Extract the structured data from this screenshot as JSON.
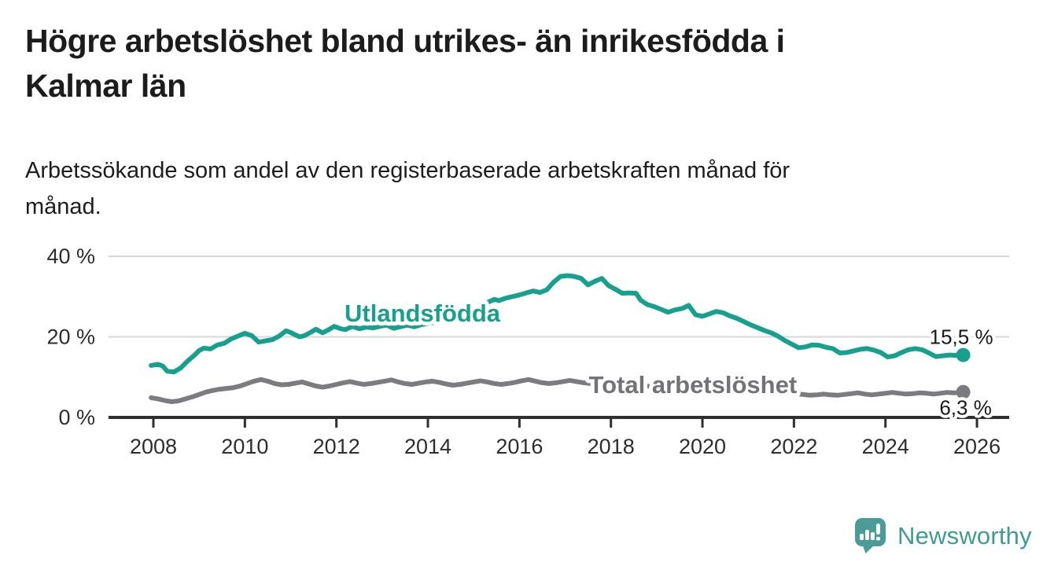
{
  "page": {
    "title_line1": "Högre arbetslöshet bland utrikes- än inrikesfödda i",
    "title_line2": "Kalmar län",
    "subtitle_line1": "Arbetssökande som andel av den registerbaserade arbetskraften månad för",
    "subtitle_line2": "månad."
  },
  "branding": {
    "logo_text": "Newsworthy",
    "logo_text_color": "#419a94",
    "icon_color": "#4a9c97"
  },
  "chart_data": {
    "type": "line",
    "grid": "horizontal-only",
    "background": "#ffffff",
    "x_axis": {
      "range": [
        2007.6,
        2026.8
      ],
      "ticks": [
        {
          "value": 2008,
          "label": "2008"
        },
        {
          "value": 2010,
          "label": "2010"
        },
        {
          "value": 2012,
          "label": "2012"
        },
        {
          "value": 2014,
          "label": "2014"
        },
        {
          "value": 2016,
          "label": "2016"
        },
        {
          "value": 2018,
          "label": "2018"
        },
        {
          "value": 2020,
          "label": "2020"
        },
        {
          "value": 2022,
          "label": "2022"
        },
        {
          "value": 2024,
          "label": "2024"
        },
        {
          "value": 2026,
          "label": "2026"
        }
      ]
    },
    "y_axis": {
      "range": [
        0,
        40
      ],
      "unit": "%",
      "ticks": [
        {
          "value": 0,
          "label": "0 %"
        },
        {
          "value": 20,
          "label": "20 %"
        },
        {
          "value": 40,
          "label": "40 %"
        }
      ]
    },
    "series": [
      {
        "name": "Utlandsfödda",
        "label": "Utlandsfödda",
        "color": "#18a08f",
        "end_label": "15,5 %",
        "end_value": 15.5,
        "label_anchor": {
          "year": 2013.88,
          "value": 26.0
        },
        "points": [
          [
            2007.95,
            12.9
          ],
          [
            2008.1,
            13.2
          ],
          [
            2008.2,
            12.8
          ],
          [
            2008.3,
            11.5
          ],
          [
            2008.45,
            11.3
          ],
          [
            2008.6,
            12.3
          ],
          [
            2008.75,
            14.0
          ],
          [
            2008.9,
            15.5
          ],
          [
            2009.0,
            16.6
          ],
          [
            2009.1,
            17.2
          ],
          [
            2009.25,
            17.0
          ],
          [
            2009.4,
            18.0
          ],
          [
            2009.55,
            18.4
          ],
          [
            2009.7,
            19.5
          ],
          [
            2009.85,
            20.2
          ],
          [
            2010.0,
            20.9
          ],
          [
            2010.15,
            20.3
          ],
          [
            2010.3,
            18.7
          ],
          [
            2010.45,
            19.0
          ],
          [
            2010.6,
            19.3
          ],
          [
            2010.75,
            20.2
          ],
          [
            2010.9,
            21.5
          ],
          [
            2011.0,
            21.1
          ],
          [
            2011.1,
            20.5
          ],
          [
            2011.2,
            20.0
          ],
          [
            2011.3,
            20.3
          ],
          [
            2011.45,
            21.2
          ],
          [
            2011.55,
            21.9
          ],
          [
            2011.7,
            21.0
          ],
          [
            2011.85,
            21.9
          ],
          [
            2011.95,
            22.6
          ],
          [
            2012.1,
            22.0
          ],
          [
            2012.2,
            21.8
          ],
          [
            2012.35,
            22.6
          ],
          [
            2012.5,
            22.0
          ],
          [
            2012.65,
            22.4
          ],
          [
            2012.8,
            22.2
          ],
          [
            2012.95,
            22.6
          ],
          [
            2013.1,
            22.9
          ],
          [
            2013.25,
            22.1
          ],
          [
            2013.4,
            22.5
          ],
          [
            2013.55,
            22.9
          ],
          [
            2013.7,
            22.5
          ],
          [
            2013.85,
            23.0
          ],
          [
            2014.0,
            23.3
          ],
          [
            2014.2,
            23.7
          ],
          [
            2014.4,
            24.1
          ],
          [
            2014.6,
            24.4
          ],
          [
            2014.8,
            25.0
          ],
          [
            2015.0,
            26.3
          ],
          [
            2015.15,
            27.5
          ],
          [
            2015.3,
            28.5
          ],
          [
            2015.45,
            29.3
          ],
          [
            2015.55,
            29.0
          ],
          [
            2015.7,
            29.6
          ],
          [
            2015.85,
            30.0
          ],
          [
            2016.0,
            30.4
          ],
          [
            2016.15,
            30.9
          ],
          [
            2016.3,
            31.4
          ],
          [
            2016.45,
            31.0
          ],
          [
            2016.6,
            31.7
          ],
          [
            2016.75,
            33.6
          ],
          [
            2016.9,
            35.0
          ],
          [
            2017.05,
            35.2
          ],
          [
            2017.2,
            35.0
          ],
          [
            2017.35,
            34.5
          ],
          [
            2017.5,
            32.9
          ],
          [
            2017.65,
            33.8
          ],
          [
            2017.8,
            34.5
          ],
          [
            2017.95,
            32.7
          ],
          [
            2018.1,
            31.8
          ],
          [
            2018.25,
            30.8
          ],
          [
            2018.4,
            30.9
          ],
          [
            2018.55,
            30.8
          ],
          [
            2018.65,
            29.1
          ],
          [
            2018.8,
            28.0
          ],
          [
            2018.95,
            27.5
          ],
          [
            2019.1,
            26.8
          ],
          [
            2019.25,
            26.1
          ],
          [
            2019.4,
            26.7
          ],
          [
            2019.55,
            27.0
          ],
          [
            2019.7,
            27.8
          ],
          [
            2019.85,
            25.5
          ],
          [
            2020.0,
            25.1
          ],
          [
            2020.15,
            25.7
          ],
          [
            2020.3,
            26.3
          ],
          [
            2020.45,
            26.0
          ],
          [
            2020.6,
            25.2
          ],
          [
            2020.75,
            24.6
          ],
          [
            2020.9,
            23.8
          ],
          [
            2021.05,
            23.0
          ],
          [
            2021.2,
            22.3
          ],
          [
            2021.35,
            21.6
          ],
          [
            2021.5,
            21.0
          ],
          [
            2021.65,
            20.2
          ],
          [
            2021.8,
            19.1
          ],
          [
            2021.95,
            18.2
          ],
          [
            2022.1,
            17.3
          ],
          [
            2022.25,
            17.5
          ],
          [
            2022.4,
            18.0
          ],
          [
            2022.55,
            17.9
          ],
          [
            2022.7,
            17.4
          ],
          [
            2022.85,
            17.1
          ],
          [
            2023.0,
            16.0
          ],
          [
            2023.15,
            16.1
          ],
          [
            2023.3,
            16.5
          ],
          [
            2023.45,
            16.9
          ],
          [
            2023.6,
            17.1
          ],
          [
            2023.75,
            16.7
          ],
          [
            2023.9,
            16.1
          ],
          [
            2024.05,
            15.0
          ],
          [
            2024.2,
            15.3
          ],
          [
            2024.35,
            16.1
          ],
          [
            2024.5,
            16.8
          ],
          [
            2024.65,
            17.1
          ],
          [
            2024.8,
            16.8
          ],
          [
            2024.95,
            16.0
          ],
          [
            2025.1,
            15.1
          ],
          [
            2025.25,
            15.3
          ],
          [
            2025.4,
            15.5
          ],
          [
            2025.55,
            15.4
          ],
          [
            2025.7,
            15.5
          ]
        ]
      },
      {
        "name": "Total arbetslöshet",
        "label": "Total arbetslöshet",
        "color": "#7c7c80",
        "label_color": "#737377",
        "end_label": "6,3 %",
        "end_value": 6.3,
        "label_anchor": {
          "year": 2019.79,
          "value": 8.2
        },
        "points": [
          [
            2007.95,
            4.9
          ],
          [
            2008.1,
            4.6
          ],
          [
            2008.25,
            4.2
          ],
          [
            2008.4,
            3.9
          ],
          [
            2008.55,
            4.1
          ],
          [
            2008.7,
            4.6
          ],
          [
            2008.85,
            5.1
          ],
          [
            2009.0,
            5.7
          ],
          [
            2009.15,
            6.3
          ],
          [
            2009.3,
            6.7
          ],
          [
            2009.45,
            7.0
          ],
          [
            2009.6,
            7.2
          ],
          [
            2009.75,
            7.4
          ],
          [
            2009.9,
            7.8
          ],
          [
            2010.05,
            8.4
          ],
          [
            2010.2,
            9.0
          ],
          [
            2010.35,
            9.4
          ],
          [
            2010.5,
            9.0
          ],
          [
            2010.65,
            8.4
          ],
          [
            2010.8,
            8.1
          ],
          [
            2010.95,
            8.2
          ],
          [
            2011.1,
            8.5
          ],
          [
            2011.25,
            8.8
          ],
          [
            2011.4,
            8.3
          ],
          [
            2011.55,
            7.8
          ],
          [
            2011.7,
            7.5
          ],
          [
            2011.85,
            7.8
          ],
          [
            2012.0,
            8.2
          ],
          [
            2012.15,
            8.6
          ],
          [
            2012.3,
            8.9
          ],
          [
            2012.45,
            8.5
          ],
          [
            2012.6,
            8.2
          ],
          [
            2012.75,
            8.4
          ],
          [
            2012.9,
            8.7
          ],
          [
            2013.05,
            9.0
          ],
          [
            2013.2,
            9.3
          ],
          [
            2013.35,
            8.8
          ],
          [
            2013.5,
            8.4
          ],
          [
            2013.65,
            8.2
          ],
          [
            2013.8,
            8.5
          ],
          [
            2013.95,
            8.8
          ],
          [
            2014.1,
            9.0
          ],
          [
            2014.25,
            8.7
          ],
          [
            2014.4,
            8.3
          ],
          [
            2014.55,
            8.0
          ],
          [
            2014.7,
            8.2
          ],
          [
            2014.85,
            8.5
          ],
          [
            2015.0,
            8.8
          ],
          [
            2015.15,
            9.1
          ],
          [
            2015.3,
            8.8
          ],
          [
            2015.45,
            8.4
          ],
          [
            2015.6,
            8.2
          ],
          [
            2015.75,
            8.4
          ],
          [
            2015.9,
            8.7
          ],
          [
            2016.05,
            9.1
          ],
          [
            2016.2,
            9.4
          ],
          [
            2016.35,
            9.0
          ],
          [
            2016.5,
            8.6
          ],
          [
            2016.65,
            8.4
          ],
          [
            2016.8,
            8.6
          ],
          [
            2016.95,
            8.9
          ],
          [
            2017.1,
            9.2
          ],
          [
            2017.25,
            8.9
          ],
          [
            2017.4,
            8.6
          ],
          [
            2017.55,
            8.4
          ],
          [
            2017.7,
            8.6
          ],
          [
            2017.85,
            8.4
          ],
          [
            2018.0,
            8.5
          ],
          [
            2018.3,
            8.2
          ],
          [
            2018.6,
            7.9
          ],
          [
            2018.9,
            7.7
          ],
          [
            2019.2,
            7.4
          ],
          [
            2019.5,
            7.2
          ],
          [
            2019.8,
            7.3
          ],
          [
            2020.1,
            7.6
          ],
          [
            2020.4,
            8.3
          ],
          [
            2020.7,
            8.0
          ],
          [
            2021.0,
            7.6
          ],
          [
            2021.3,
            7.1
          ],
          [
            2021.6,
            6.6
          ],
          [
            2021.9,
            6.1
          ],
          [
            2022.2,
            5.7
          ],
          [
            2022.35,
            5.5
          ],
          [
            2022.5,
            5.6
          ],
          [
            2022.65,
            5.8
          ],
          [
            2022.8,
            5.6
          ],
          [
            2022.95,
            5.5
          ],
          [
            2023.1,
            5.7
          ],
          [
            2023.25,
            5.9
          ],
          [
            2023.4,
            6.1
          ],
          [
            2023.55,
            5.8
          ],
          [
            2023.7,
            5.6
          ],
          [
            2023.85,
            5.8
          ],
          [
            2024.0,
            6.0
          ],
          [
            2024.15,
            6.2
          ],
          [
            2024.3,
            6.0
          ],
          [
            2024.45,
            5.8
          ],
          [
            2024.6,
            5.9
          ],
          [
            2024.75,
            6.1
          ],
          [
            2024.9,
            6.0
          ],
          [
            2025.05,
            5.8
          ],
          [
            2025.2,
            6.0
          ],
          [
            2025.35,
            6.2
          ],
          [
            2025.5,
            6.1
          ],
          [
            2025.7,
            6.3
          ]
        ]
      }
    ]
  }
}
